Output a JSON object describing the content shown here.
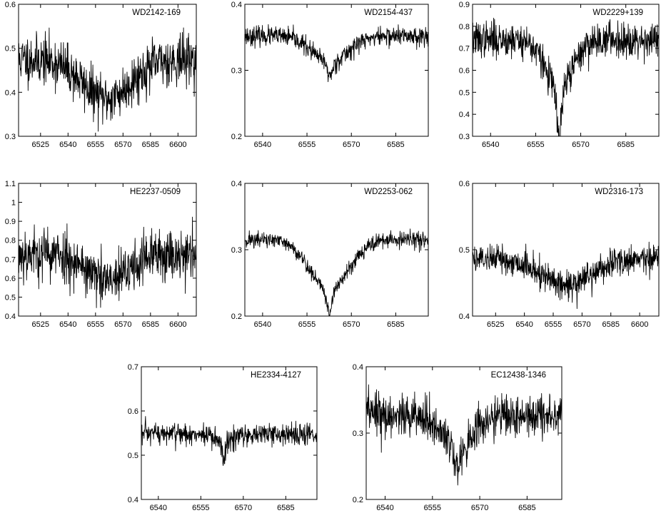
{
  "colors": {
    "line": "#000000",
    "frame": "#000000",
    "background": "#ffffff"
  },
  "chart_data": [
    {
      "type": "line",
      "title": "WD2142-169",
      "xlim": [
        6513,
        6610
      ],
      "ylim": [
        0.3,
        0.6
      ],
      "xticks": [
        6525,
        6540,
        6555,
        6570,
        6585,
        6600
      ],
      "yticks": [
        0.3,
        0.4,
        0.5,
        0.6
      ],
      "grid": false,
      "series": [
        {
          "profile": {
            "continuum": 0.475,
            "depth": 0.09,
            "center": 6561,
            "width": 13,
            "core_depth": 0,
            "core_width": 1,
            "noise": 0.028,
            "seed": 11
          },
          "x": [
            6513,
            6520,
            6527,
            6534,
            6541,
            6548,
            6552,
            6556,
            6560,
            6563,
            6566,
            6570,
            6575,
            6582,
            6590,
            6598,
            6605,
            6610
          ],
          "y": [
            0.47,
            0.49,
            0.48,
            0.49,
            0.48,
            0.46,
            0.42,
            0.4,
            0.38,
            0.38,
            0.4,
            0.43,
            0.45,
            0.46,
            0.47,
            0.47,
            0.48,
            0.48
          ]
        }
      ]
    },
    {
      "type": "line",
      "title": "WD2154-437",
      "xlim": [
        6534,
        6596
      ],
      "ylim": [
        0.2,
        0.4
      ],
      "xticks": [
        6540,
        6555,
        6570,
        6585
      ],
      "yticks": [
        0.2,
        0.3,
        0.4
      ],
      "grid": false,
      "series": [
        {
          "profile": {
            "continuum": 0.352,
            "depth": 0.04,
            "center": 6562.8,
            "width": 6,
            "core_depth": 0.02,
            "core_width": 0.9,
            "noise": 0.007,
            "seed": 23
          },
          "x": [
            6534,
            6540,
            6545,
            6550,
            6555,
            6558,
            6561,
            6562.8,
            6565,
            6568,
            6572,
            6578,
            6585,
            6590,
            6596
          ],
          "y": [
            0.355,
            0.352,
            0.35,
            0.346,
            0.335,
            0.322,
            0.3,
            0.292,
            0.315,
            0.33,
            0.34,
            0.345,
            0.35,
            0.352,
            0.35
          ]
        }
      ]
    },
    {
      "type": "line",
      "title": "WD2229+139",
      "xlim": [
        6534,
        6596
      ],
      "ylim": [
        0.3,
        0.9
      ],
      "xticks": [
        6540,
        6555,
        6570,
        6585
      ],
      "yticks": [
        0.3,
        0.4,
        0.5,
        0.6,
        0.7,
        0.8,
        0.9
      ],
      "grid": false,
      "series": [
        {
          "profile": {
            "continuum": 0.74,
            "depth": 0.22,
            "center": 6562.8,
            "width": 4.5,
            "core_depth": 0.22,
            "core_width": 0.8,
            "noise": 0.04,
            "seed": 37
          },
          "x": [
            6534,
            6540,
            6545,
            6550,
            6555,
            6558,
            6561,
            6562.8,
            6564,
            6566,
            6569,
            6575,
            6582,
            6590,
            6596
          ],
          "y": [
            0.74,
            0.75,
            0.73,
            0.72,
            0.69,
            0.64,
            0.52,
            0.35,
            0.5,
            0.62,
            0.68,
            0.72,
            0.74,
            0.75,
            0.74
          ]
        }
      ]
    },
    {
      "type": "line",
      "title": "HE2237-0509",
      "xlim": [
        6513,
        6610
      ],
      "ylim": [
        0.4,
        1.1
      ],
      "xticks": [
        6525,
        6540,
        6555,
        6570,
        6585,
        6600
      ],
      "yticks": [
        0.4,
        0.5,
        0.6,
        0.7,
        0.8,
        0.9,
        1,
        1.1
      ],
      "grid": false,
      "series": [
        {
          "profile": {
            "continuum": 0.73,
            "depth": 0.15,
            "center": 6562,
            "width": 11,
            "core_depth": 0,
            "core_width": 1,
            "noise": 0.07,
            "seed": 53
          },
          "x": [
            6513,
            6520,
            6527,
            6534,
            6541,
            6548,
            6554,
            6558,
            6562,
            6566,
            6570,
            6576,
            6583,
            6590,
            6598,
            6605,
            6610
          ],
          "y": [
            0.72,
            0.73,
            0.74,
            0.74,
            0.73,
            0.7,
            0.66,
            0.62,
            0.58,
            0.62,
            0.66,
            0.7,
            0.73,
            0.75,
            0.77,
            0.75,
            0.74
          ]
        }
      ]
    },
    {
      "type": "line",
      "title": "WD2253-062",
      "xlim": [
        6534,
        6596
      ],
      "ylim": [
        0.2,
        0.4
      ],
      "xticks": [
        6540,
        6555,
        6570,
        6585
      ],
      "yticks": [
        0.2,
        0.3,
        0.4
      ],
      "grid": false,
      "series": [
        {
          "profile": {
            "continuum": 0.315,
            "depth": 0.075,
            "center": 6562.5,
            "width": 6.5,
            "core_depth": 0.035,
            "core_width": 0.9,
            "noise": 0.006,
            "seed": 71
          },
          "x": [
            6534,
            6540,
            6545,
            6550,
            6555,
            6558,
            6560.5,
            6562.5,
            6564.5,
            6567,
            6572,
            6578,
            6585,
            6590,
            6596
          ],
          "y": [
            0.318,
            0.312,
            0.306,
            0.296,
            0.278,
            0.26,
            0.235,
            0.207,
            0.235,
            0.262,
            0.285,
            0.298,
            0.306,
            0.31,
            0.312
          ]
        }
      ]
    },
    {
      "type": "line",
      "title": "WD2316-173",
      "xlim": [
        6513,
        6610
      ],
      "ylim": [
        0.4,
        0.6
      ],
      "xticks": [
        6525,
        6540,
        6555,
        6570,
        6585,
        6600
      ],
      "yticks": [
        0.4,
        0.5,
        0.6
      ],
      "grid": false,
      "series": [
        {
          "profile": {
            "continuum": 0.488,
            "depth": 0.04,
            "center": 6562,
            "width": 14,
            "core_depth": 0,
            "core_width": 1,
            "noise": 0.011,
            "seed": 89
          },
          "x": [
            6513,
            6520,
            6527,
            6534,
            6541,
            6548,
            6554,
            6558,
            6562,
            6566,
            6570,
            6576,
            6583,
            6590,
            6598,
            6605,
            6610
          ],
          "y": [
            0.495,
            0.493,
            0.488,
            0.485,
            0.478,
            0.47,
            0.46,
            0.455,
            0.45,
            0.458,
            0.466,
            0.474,
            0.482,
            0.486,
            0.488,
            0.486,
            0.484
          ]
        }
      ]
    },
    {
      "type": "line",
      "title": "HE2334-4127",
      "xlim": [
        6534,
        6596
      ],
      "ylim": [
        0.4,
        0.7
      ],
      "xticks": [
        6540,
        6555,
        6570,
        6585
      ],
      "yticks": [
        0.4,
        0.5,
        0.6,
        0.7
      ],
      "grid": false,
      "series": [
        {
          "profile": {
            "continuum": 0.548,
            "depth": 0.018,
            "center": 6563,
            "width": 3.5,
            "core_depth": 0.045,
            "core_width": 0.6,
            "noise": 0.013,
            "seed": 97
          },
          "x": [
            6534,
            6540,
            6545,
            6550,
            6555,
            6559,
            6561.5,
            6563,
            6564.5,
            6567,
            6572,
            6578,
            6585,
            6590,
            6596
          ],
          "y": [
            0.55,
            0.55,
            0.55,
            0.55,
            0.545,
            0.54,
            0.525,
            0.49,
            0.525,
            0.54,
            0.545,
            0.55,
            0.55,
            0.55,
            0.55
          ]
        }
      ]
    },
    {
      "type": "line",
      "title": "EC12438-1346",
      "xlim": [
        6534,
        6596
      ],
      "ylim": [
        0.2,
        0.4
      ],
      "xticks": [
        6540,
        6555,
        6570,
        6585
      ],
      "yticks": [
        0.2,
        0.3,
        0.4
      ],
      "grid": false,
      "series": [
        {
          "profile": {
            "continuum": 0.327,
            "depth": 0.045,
            "center": 6563,
            "width": 5,
            "core_depth": 0.03,
            "core_width": 1.2,
            "noise": 0.016,
            "seed": 113
          },
          "x": [
            6534,
            6540,
            6545,
            6550,
            6555,
            6559,
            6561.5,
            6563,
            6565,
            6568,
            6572,
            6578,
            6585,
            6590,
            6596
          ],
          "y": [
            0.33,
            0.33,
            0.325,
            0.32,
            0.31,
            0.29,
            0.265,
            0.235,
            0.27,
            0.295,
            0.31,
            0.32,
            0.325,
            0.33,
            0.33
          ]
        }
      ]
    }
  ]
}
